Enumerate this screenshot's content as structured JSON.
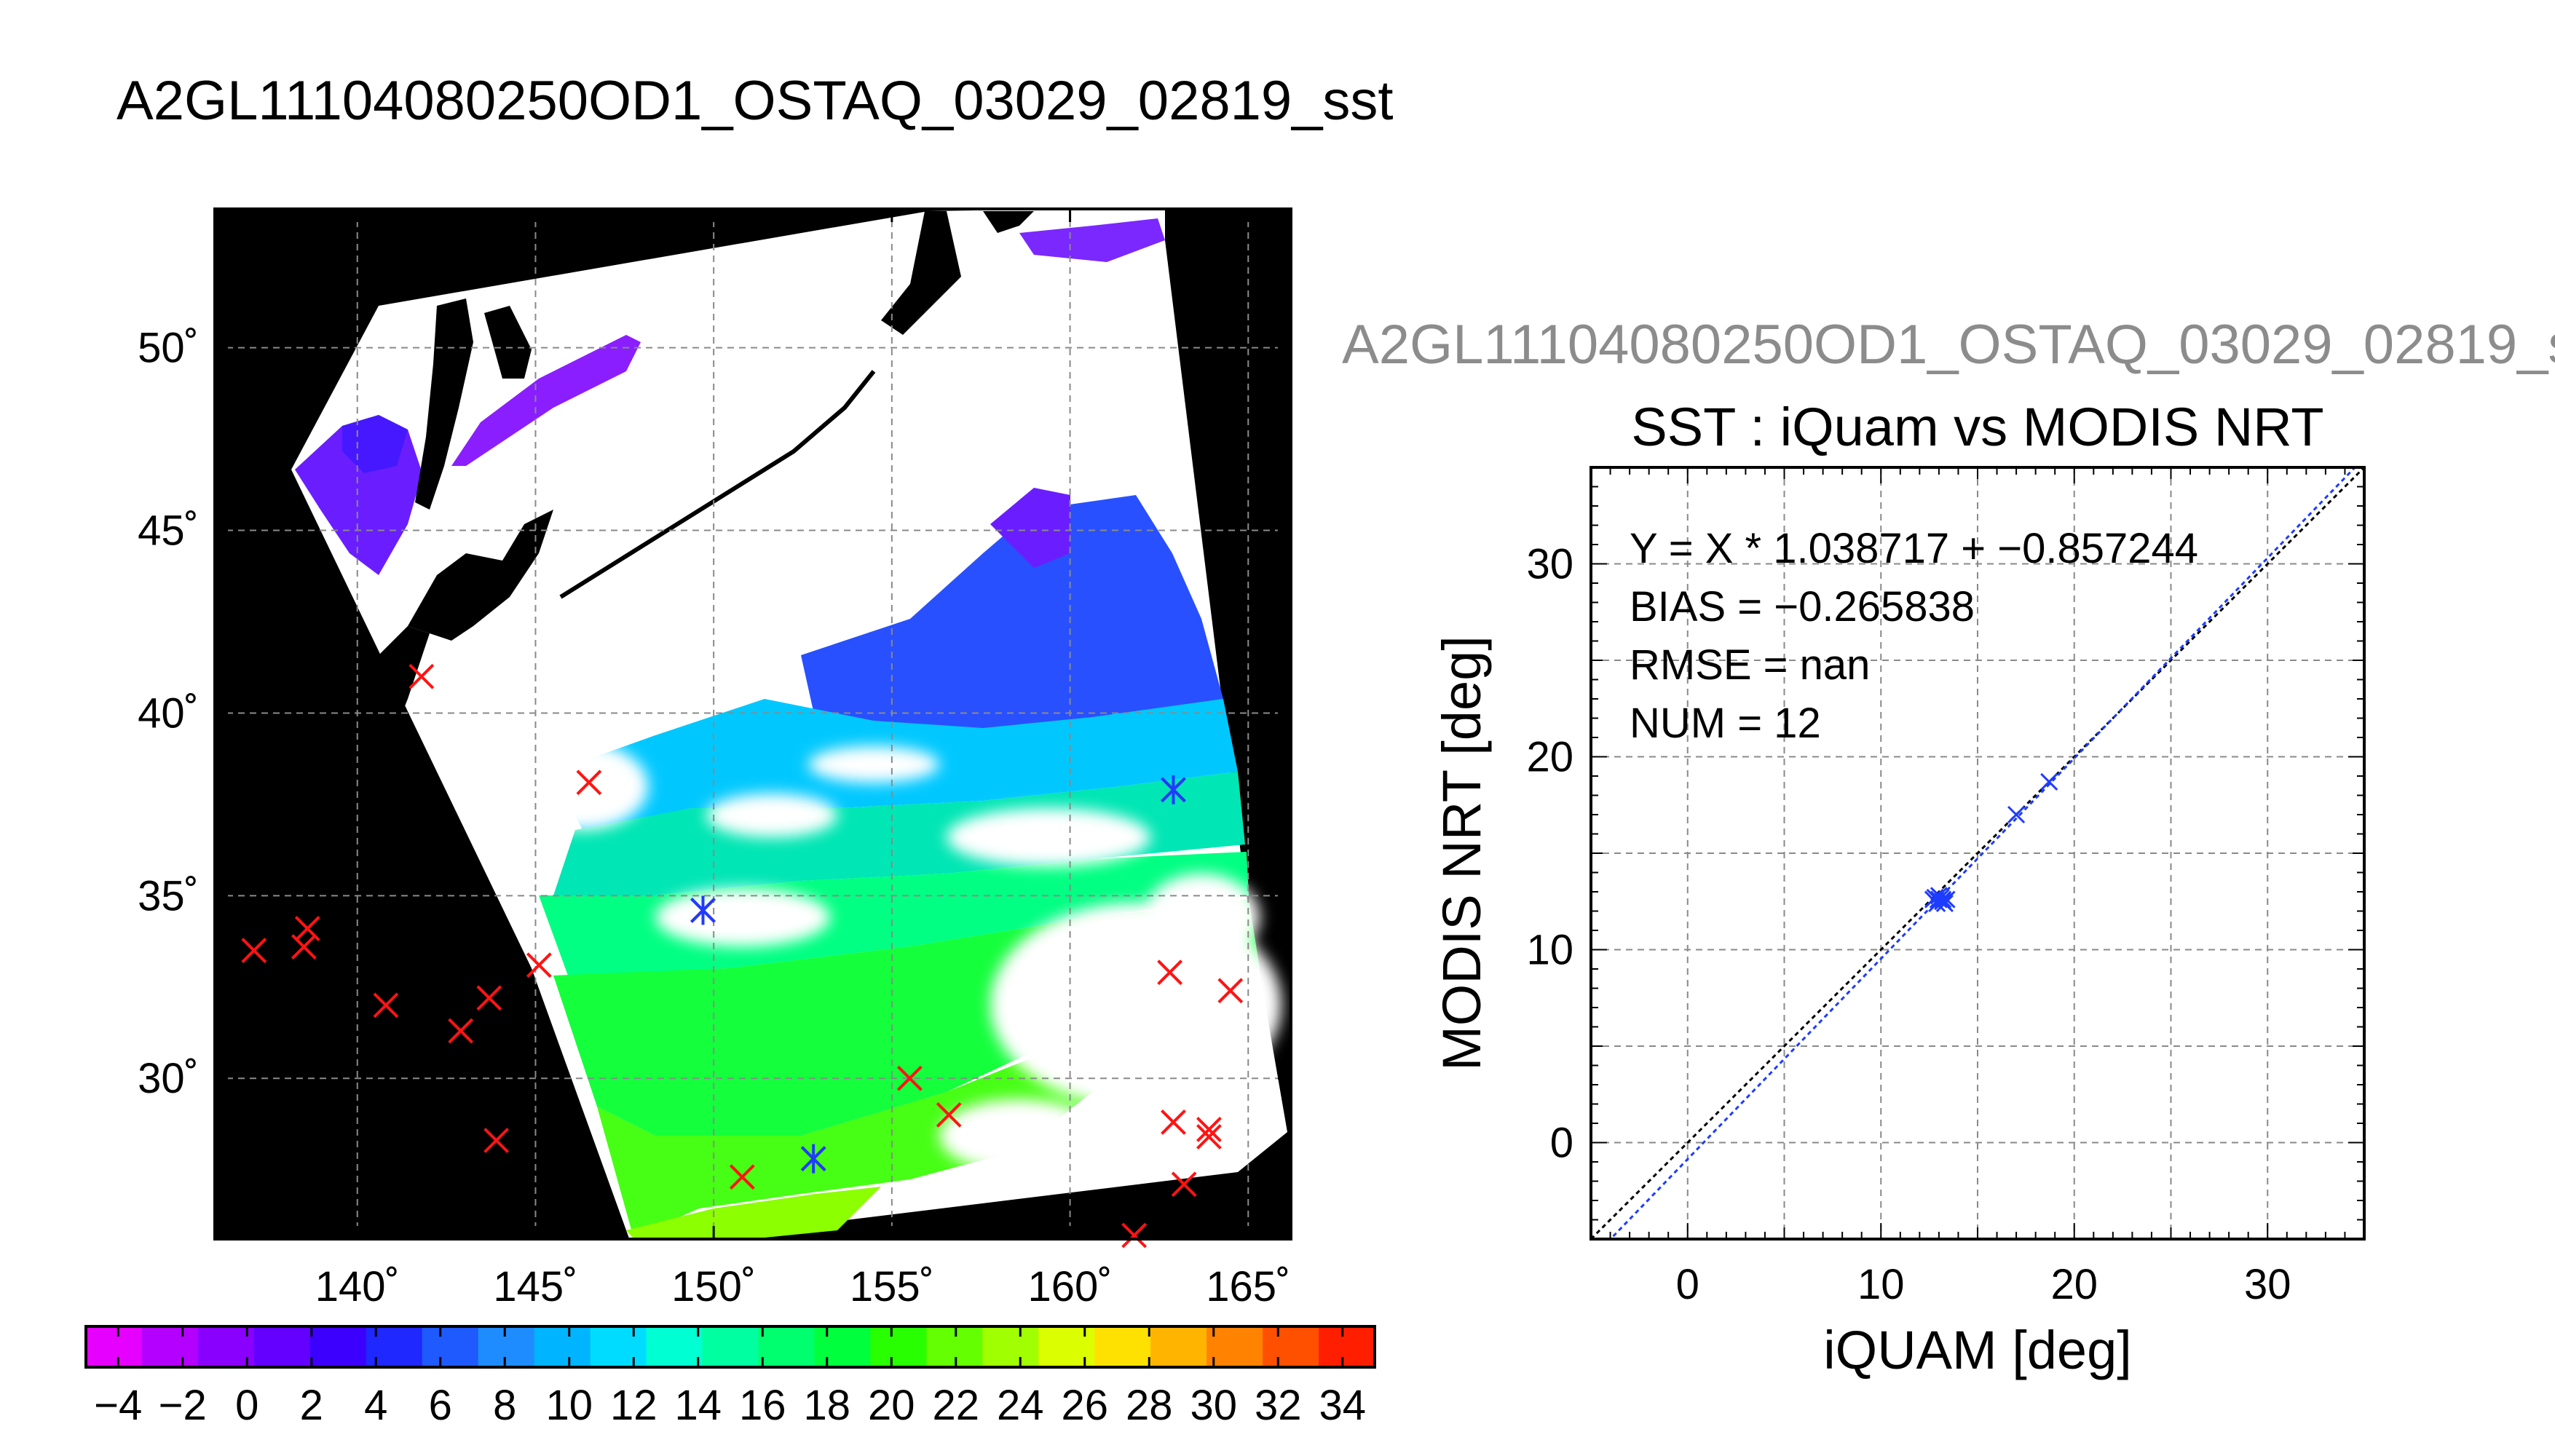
{
  "title": "A2GL11104080250OD1_OSTAQ_03029_02819_sst",
  "right_title": "A2GL11104080250OD1_OSTAQ_03029_02819_s",
  "chart_data": [
    {
      "type": "map",
      "lon_ticks": [
        140,
        145,
        150,
        155,
        160,
        165
      ],
      "lat_ticks": [
        30,
        35,
        40,
        45,
        50
      ],
      "lon_labels": [
        "140˚",
        "145˚",
        "150˚",
        "155˚",
        "160˚",
        "165˚"
      ],
      "lat_labels": [
        "30˚",
        "35˚",
        "40˚",
        "45˚",
        "50˚"
      ],
      "lon_range": [
        136,
        166.2
      ],
      "lat_range": [
        25.6,
        53.8
      ],
      "grid": true,
      "colorbar": {
        "range": [
          -5,
          35
        ],
        "tick_values": [
          -4,
          -2,
          0,
          2,
          4,
          6,
          8,
          10,
          12,
          14,
          16,
          18,
          20,
          22,
          24,
          26,
          28,
          30,
          32,
          34
        ],
        "tick_labels": [
          "−4",
          "−2",
          "0",
          "2",
          "4",
          "6",
          "8",
          "10",
          "12",
          "14",
          "16",
          "18",
          "20",
          "22",
          "24",
          "26",
          "28",
          "30",
          "32",
          "34"
        ],
        "colors": [
          "#e600ff",
          "#b400ff",
          "#8a00ff",
          "#6400ff",
          "#3c00ff",
          "#1e28ff",
          "#1e5aff",
          "#1e8cff",
          "#00b4ff",
          "#00dcff",
          "#00ffd2",
          "#00ffa0",
          "#00ff6e",
          "#00ff3c",
          "#28ff00",
          "#64ff00",
          "#a0ff00",
          "#dcff00",
          "#ffe100",
          "#ffb400",
          "#ff8200",
          "#ff5000",
          "#ff1e00"
        ]
      },
      "matchups_red": [
        {
          "lon": 137.1,
          "lat": 33.5
        },
        {
          "lon": 138.6,
          "lat": 34.1
        },
        {
          "lon": 138.5,
          "lat": 33.6
        },
        {
          "lon": 140.8,
          "lat": 32.0
        },
        {
          "lon": 142.9,
          "lat": 31.3
        },
        {
          "lon": 143.7,
          "lat": 32.2
        },
        {
          "lon": 143.9,
          "lat": 28.3
        },
        {
          "lon": 141.8,
          "lat": 41.0
        },
        {
          "lon": 145.1,
          "lat": 33.1
        },
        {
          "lon": 146.5,
          "lat": 38.1
        },
        {
          "lon": 149.7,
          "lat": 34.6
        },
        {
          "lon": 150.8,
          "lat": 27.3
        },
        {
          "lon": 152.8,
          "lat": 27.8
        },
        {
          "lon": 155.5,
          "lat": 30.0
        },
        {
          "lon": 156.6,
          "lat": 29.0
        },
        {
          "lon": 161.8,
          "lat": 25.7
        },
        {
          "lon": 162.9,
          "lat": 28.8
        },
        {
          "lon": 162.8,
          "lat": 32.9
        },
        {
          "lon": 163.2,
          "lat": 27.1
        },
        {
          "lon": 163.9,
          "lat": 28.4
        },
        {
          "lon": 163.9,
          "lat": 28.6
        },
        {
          "lon": 164.5,
          "lat": 32.4
        },
        {
          "lon": 162.9,
          "lat": 37.9
        }
      ],
      "matchups_blue": [
        {
          "lon": 149.7,
          "lat": 34.6
        },
        {
          "lon": 152.8,
          "lat": 27.8
        },
        {
          "lon": 162.9,
          "lat": 37.9
        }
      ]
    },
    {
      "type": "scatter",
      "title": "SST : iQuam vs MODIS NRT",
      "xlabel": "iQUAM [deg]",
      "ylabel": "MODIS NRT [deg]",
      "xlim": [
        -5,
        35
      ],
      "ylim": [
        -5,
        35
      ],
      "x_ticks": [
        0,
        10,
        20,
        30
      ],
      "y_ticks": [
        0,
        10,
        20,
        30
      ],
      "grid": true,
      "stats": [
        "Y = X * 1.038717 + −0.857244",
        "BIAS = −0.265838",
        "RMSE = nan",
        "NUM = 12"
      ],
      "points": [
        {
          "x": 12.8,
          "y": 12.7
        },
        {
          "x": 13.0,
          "y": 12.6
        },
        {
          "x": 13.2,
          "y": 12.5
        },
        {
          "x": 13.4,
          "y": 12.6
        },
        {
          "x": 12.9,
          "y": 12.4
        },
        {
          "x": 13.1,
          "y": 12.7
        },
        {
          "x": 13.3,
          "y": 12.4
        },
        {
          "x": 12.7,
          "y": 12.6
        },
        {
          "x": 13.0,
          "y": 12.8
        },
        {
          "x": 13.2,
          "y": 12.6
        },
        {
          "x": 17.0,
          "y": 17.0
        },
        {
          "x": 18.7,
          "y": 18.7
        }
      ],
      "fit": {
        "slope": 1.038717,
        "intercept": -0.857244
      },
      "line_color": "#1e3cff"
    }
  ]
}
